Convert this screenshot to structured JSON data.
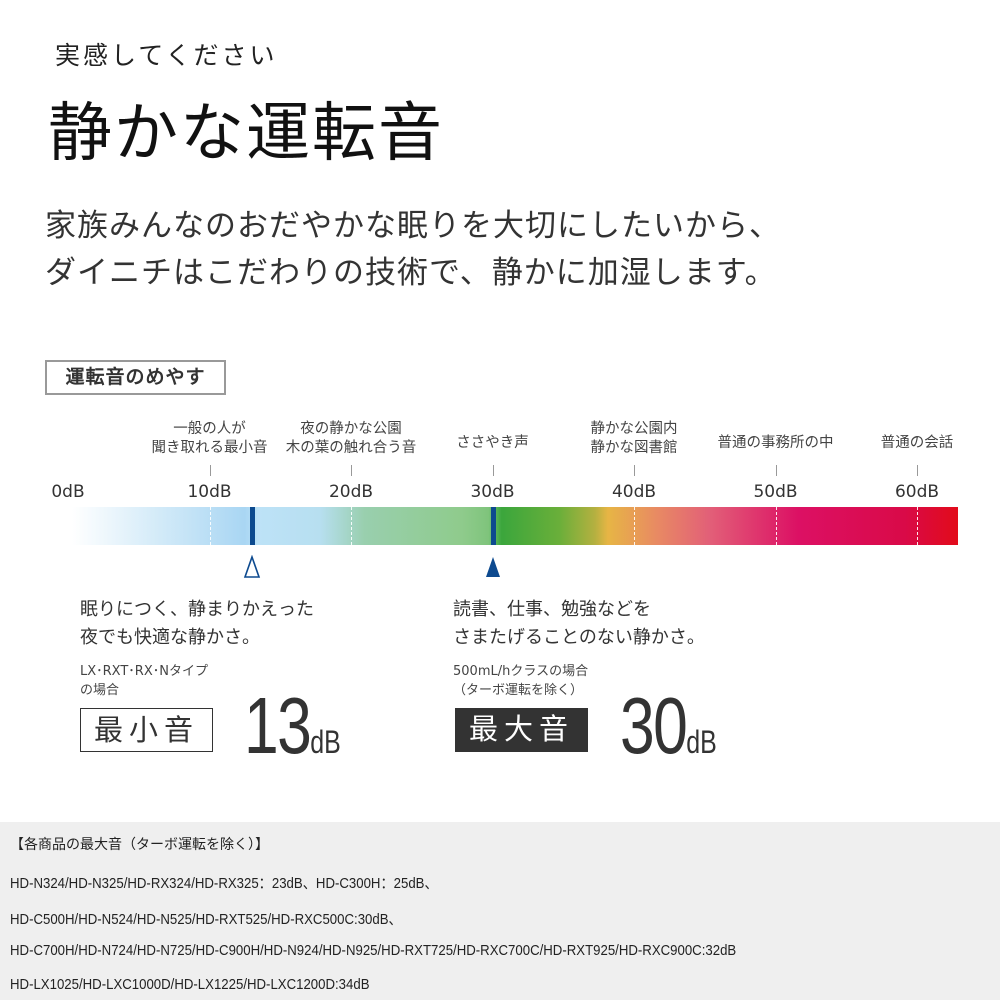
{
  "header": {
    "subtitle": "実感してください",
    "title": "静かな運転音",
    "lead": [
      "家族みんなのおだやかな眠りを大切にしたいから、",
      "ダイニチはこだわりの技術で、静かに加湿します。"
    ]
  },
  "scale": {
    "badge": "運転音のめやす",
    "db_labels": [
      "0dB",
      "10dB",
      "20dB",
      "30dB",
      "40dB",
      "50dB",
      "60dB"
    ],
    "references": [
      {
        "db": 10,
        "lines": [
          "一般の人が",
          "聞き取れる最小音"
        ]
      },
      {
        "db": 20,
        "lines": [
          "夜の静かな公園",
          "木の葉の触れ合う音"
        ]
      },
      {
        "db": 30,
        "lines": [
          "ささやき声"
        ]
      },
      {
        "db": 40,
        "lines": [
          "静かな公園内",
          "静かな図書館"
        ]
      },
      {
        "db": 50,
        "lines": [
          "普通の事務所の中"
        ]
      },
      {
        "db": 60,
        "lines": [
          "普通の会話"
        ]
      }
    ],
    "markers": [
      {
        "db": 13,
        "style": "hollow"
      },
      {
        "db": 30,
        "style": "filled"
      }
    ],
    "colors": {
      "marker": "#0d4a8f",
      "low": "#a9d6f3",
      "mid": "#3ba63c",
      "high": "#e20b1a"
    }
  },
  "min": {
    "desc": [
      "眠りにつく、静まりかえった",
      "夜でも快適な静かさ。"
    ],
    "note": [
      "LX･RXT･RX･Nタイプ",
      "の場合"
    ],
    "label": "最小音",
    "value": "13",
    "unit": "dB"
  },
  "max": {
    "desc": [
      "読書、仕事、勉強などを",
      "さまたげることのない静かさ。"
    ],
    "note": [
      "500mL/hクラスの場合",
      "（ターボ運転を除く）"
    ],
    "label": "最大音",
    "value": "30",
    "unit": "dB"
  },
  "models": {
    "heading": "【各商品の最大音（ターボ運転を除く）】",
    "lines": [
      "HD-N324/HD-N325/HD-RX324/HD-RX325：23dB、HD-C300H：25dB、",
      "HD-C500H/HD-N524/HD-N525/HD-RXT525/HD-RXC500C:30dB、",
      "HD-C700H/HD-N724/HD-N725/HD-C900H/HD-N924/HD-N925/HD-RXT725/HD-RXC700C/HD-RXT925/HD-RXC900C:32dB",
      "HD-LX1025/HD-LXC1000D/HD-LX1225/HD-LXC1200D:34dB"
    ]
  }
}
